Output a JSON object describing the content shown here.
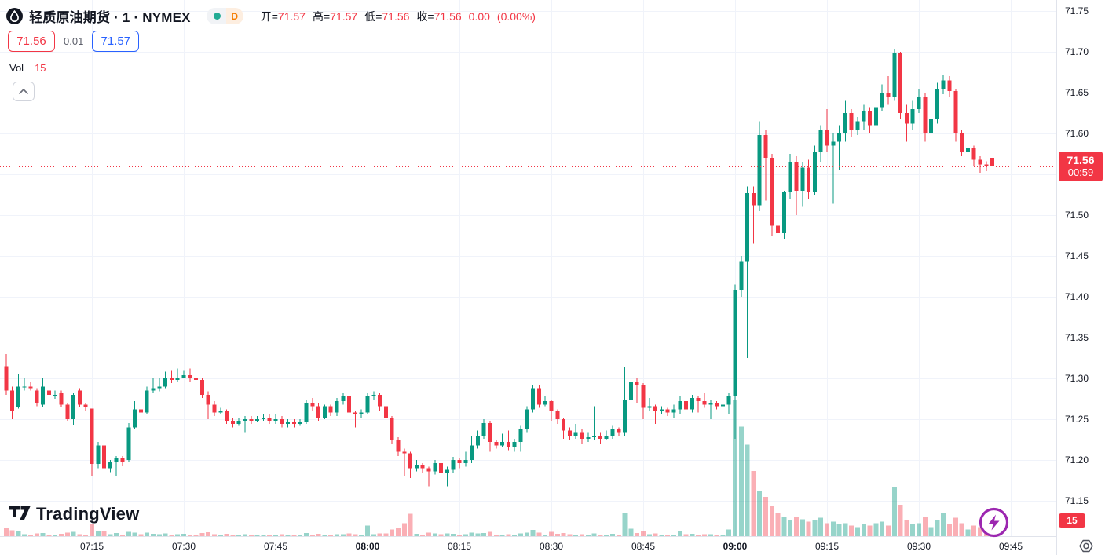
{
  "header": {
    "title": "轻质原油期货 · 1 · NYMEX",
    "interval_label": "D",
    "ohlc": [
      {
        "label": "开=",
        "value": "71.57"
      },
      {
        "label": "高=",
        "value": "71.57"
      },
      {
        "label": "低=",
        "value": "71.56"
      },
      {
        "label": "收=",
        "value": "71.56"
      }
    ],
    "change": "0.00",
    "change_pct": "(0.00%)"
  },
  "quote_row": {
    "sell": "71.56",
    "spread": "0.01",
    "buy": "71.57"
  },
  "volume_row": {
    "label": "Vol",
    "value": "15"
  },
  "watermark": {
    "brand": "TradingView"
  },
  "price_scale": {
    "current_badge": {
      "price": "71.56",
      "countdown": "00:59"
    },
    "volume_badge": "15"
  },
  "colors": {
    "up": "#089981",
    "down": "#f23645",
    "vol_up": "rgba(8,153,129,0.42)",
    "vol_down": "rgba(242,54,69,0.40)",
    "grid": "#f0f3fa",
    "axis_text": "#131722",
    "accent_red": "#f23645",
    "accent_blue": "#2962ff",
    "accent_orange": "#f57c00",
    "accent_purple": "#9c27b0",
    "muted": "#5d606b",
    "border": "#e0e3eb"
  },
  "chart_data": {
    "type": "candlestick+volume",
    "title": "轻质原油期货 1分钟 NYMEX",
    "start_time": "07:01",
    "interval_minutes": 1,
    "current_price": 71.56,
    "ylim": [
      71.1067,
      71.7635
    ],
    "grid": true,
    "price_ticks": [
      "71.75",
      "71.70",
      "71.65",
      "71.60",
      "71.55",
      "71.50",
      "71.45",
      "71.40",
      "71.35",
      "71.30",
      "71.25",
      "71.20",
      "71.15"
    ],
    "time_ticks": [
      {
        "label": "07:15",
        "bold": false
      },
      {
        "label": "07:30",
        "bold": false
      },
      {
        "label": "07:45",
        "bold": false
      },
      {
        "label": "08:00",
        "bold": true
      },
      {
        "label": "08:15",
        "bold": false
      },
      {
        "label": "08:30",
        "bold": false
      },
      {
        "label": "08:45",
        "bold": false
      },
      {
        "label": "09:00",
        "bold": true
      },
      {
        "label": "09:15",
        "bold": false
      },
      {
        "label": "09:30",
        "bold": false
      },
      {
        "label": "09:45",
        "bold": false
      }
    ],
    "volume_scale_max": 520,
    "candles": [
      [
        71.315,
        71.33,
        71.28,
        71.285
      ],
      [
        71.285,
        71.29,
        71.25,
        71.26
      ],
      [
        71.265,
        71.305,
        71.263,
        71.29
      ],
      [
        71.29,
        71.3,
        71.285,
        71.29
      ],
      [
        71.29,
        71.295,
        71.285,
        71.288
      ],
      [
        71.285,
        71.288,
        71.266,
        71.27
      ],
      [
        71.268,
        71.3,
        71.265,
        71.29
      ],
      [
        71.285,
        71.285,
        71.275,
        71.28
      ],
      [
        71.28,
        71.285,
        71.275,
        71.28
      ],
      [
        71.282,
        71.285,
        71.265,
        71.268
      ],
      [
        71.268,
        71.27,
        71.248,
        71.25
      ],
      [
        71.25,
        71.282,
        71.243,
        71.28
      ],
      [
        71.285,
        71.288,
        71.265,
        71.268
      ],
      [
        71.268,
        71.27,
        71.26,
        71.265
      ],
      [
        71.263,
        71.263,
        71.18,
        71.195
      ],
      [
        71.195,
        71.222,
        71.19,
        71.218
      ],
      [
        71.218,
        71.22,
        71.185,
        71.19
      ],
      [
        71.19,
        71.2,
        71.185,
        71.198
      ],
      [
        71.198,
        71.205,
        71.18,
        71.202
      ],
      [
        71.202,
        71.205,
        71.193,
        71.198
      ],
      [
        71.2,
        71.245,
        71.198,
        71.24
      ],
      [
        71.24,
        71.272,
        71.238,
        71.262
      ],
      [
        71.262,
        71.268,
        71.252,
        71.258
      ],
      [
        71.258,
        71.29,
        71.256,
        71.285
      ],
      [
        71.285,
        71.3,
        71.282,
        71.288
      ],
      [
        71.288,
        71.3,
        71.284,
        71.29
      ],
      [
        71.29,
        71.308,
        71.288,
        71.3
      ],
      [
        71.3,
        71.31,
        71.294,
        71.298
      ],
      [
        71.298,
        71.312,
        71.296,
        71.3
      ],
      [
        71.3,
        71.31,
        71.3,
        71.304
      ],
      [
        71.304,
        71.312,
        71.296,
        71.3
      ],
      [
        71.3,
        71.31,
        71.294,
        71.298
      ],
      [
        71.298,
        71.3,
        71.276,
        71.28
      ],
      [
        71.28,
        71.284,
        71.25,
        71.268
      ],
      [
        71.268,
        71.272,
        71.254,
        71.258
      ],
      [
        71.258,
        71.264,
        71.256,
        71.26
      ],
      [
        71.26,
        71.262,
        71.244,
        71.248
      ],
      [
        71.248,
        71.252,
        71.24,
        71.244
      ],
      [
        71.244,
        71.252,
        71.242,
        71.248
      ],
      [
        71.248,
        71.254,
        71.234,
        71.25
      ],
      [
        71.25,
        71.254,
        71.244,
        71.248
      ],
      [
        71.248,
        71.254,
        71.246,
        71.25
      ],
      [
        71.25,
        71.256,
        71.248,
        71.252
      ],
      [
        71.252,
        71.256,
        71.244,
        71.248
      ],
      [
        71.248,
        71.256,
        71.244,
        71.25
      ],
      [
        71.25,
        71.254,
        71.24,
        71.244
      ],
      [
        71.244,
        71.25,
        71.24,
        71.246
      ],
      [
        71.246,
        71.25,
        71.24,
        71.244
      ],
      [
        71.244,
        71.25,
        71.242,
        71.246
      ],
      [
        71.246,
        71.274,
        71.244,
        71.27
      ],
      [
        71.27,
        71.276,
        71.26,
        71.266
      ],
      [
        71.266,
        71.27,
        71.248,
        71.252
      ],
      [
        71.252,
        71.268,
        71.25,
        71.266
      ],
      [
        71.266,
        71.268,
        71.254,
        71.258
      ],
      [
        71.258,
        71.276,
        71.254,
        71.272
      ],
      [
        71.272,
        71.282,
        71.268,
        71.278
      ],
      [
        71.278,
        71.28,
        71.248,
        71.258
      ],
      [
        71.258,
        71.26,
        71.24,
        71.256
      ],
      [
        71.256,
        71.262,
        71.252,
        71.258
      ],
      [
        71.258,
        71.282,
        71.256,
        71.278
      ],
      [
        71.278,
        71.284,
        71.274,
        71.28
      ],
      [
        71.28,
        71.282,
        71.26,
        71.266
      ],
      [
        71.266,
        71.268,
        71.246,
        71.252
      ],
      [
        71.252,
        71.254,
        71.22,
        71.225
      ],
      [
        71.225,
        71.228,
        71.205,
        71.21
      ],
      [
        71.21,
        71.214,
        71.18,
        71.208
      ],
      [
        71.208,
        71.21,
        71.178,
        71.19
      ],
      [
        71.19,
        71.2,
        71.186,
        71.194
      ],
      [
        71.194,
        71.196,
        71.184,
        71.19
      ],
      [
        71.19,
        71.192,
        71.168,
        71.186
      ],
      [
        71.186,
        71.2,
        71.182,
        71.196
      ],
      [
        71.196,
        71.198,
        71.178,
        71.184
      ],
      [
        71.184,
        71.192,
        71.168,
        71.188
      ],
      [
        71.188,
        71.204,
        71.184,
        71.2
      ],
      [
        71.2,
        71.202,
        71.19,
        71.196
      ],
      [
        71.196,
        71.21,
        71.192,
        71.2
      ],
      [
        71.2,
        71.23,
        71.196,
        71.218
      ],
      [
        71.218,
        71.236,
        71.214,
        71.23
      ],
      [
        71.23,
        71.25,
        71.226,
        71.245
      ],
      [
        71.245,
        71.248,
        71.21,
        71.222
      ],
      [
        71.222,
        71.224,
        71.214,
        71.218
      ],
      [
        71.218,
        71.232,
        71.216,
        71.222
      ],
      [
        71.222,
        71.236,
        71.212,
        71.216
      ],
      [
        71.216,
        71.226,
        71.21,
        71.222
      ],
      [
        71.222,
        71.242,
        71.21,
        71.238
      ],
      [
        71.238,
        71.266,
        71.234,
        71.262
      ],
      [
        71.262,
        71.292,
        71.258,
        71.288
      ],
      [
        71.288,
        71.292,
        71.264,
        71.268
      ],
      [
        71.268,
        71.278,
        71.266,
        71.272
      ],
      [
        71.272,
        71.274,
        71.248,
        71.26
      ],
      [
        71.26,
        71.262,
        71.244,
        71.25
      ],
      [
        71.25,
        71.252,
        71.226,
        71.236
      ],
      [
        71.236,
        71.24,
        71.224,
        71.23
      ],
      [
        71.23,
        71.244,
        71.226,
        71.234
      ],
      [
        71.234,
        71.238,
        71.22,
        71.226
      ],
      [
        71.226,
        71.234,
        71.222,
        71.228
      ],
      [
        71.228,
        71.266,
        71.224,
        71.23
      ],
      [
        71.23,
        71.234,
        71.22,
        71.226
      ],
      [
        71.226,
        71.236,
        71.224,
        71.23
      ],
      [
        71.23,
        71.242,
        71.226,
        71.238
      ],
      [
        71.238,
        71.24,
        71.23,
        71.234
      ],
      [
        71.234,
        71.314,
        71.23,
        71.274
      ],
      [
        71.274,
        71.31,
        71.27,
        71.296
      ],
      [
        71.296,
        71.3,
        71.27,
        71.292
      ],
      [
        71.292,
        71.294,
        71.25,
        71.264
      ],
      [
        71.264,
        71.276,
        71.26,
        71.266
      ],
      [
        71.266,
        71.268,
        71.244,
        71.26
      ],
      [
        71.26,
        71.266,
        71.256,
        71.262
      ],
      [
        71.262,
        71.264,
        71.254,
        71.258
      ],
      [
        71.258,
        71.268,
        71.252,
        71.262
      ],
      [
        71.262,
        71.278,
        71.256,
        71.272
      ],
      [
        71.272,
        71.278,
        71.258,
        71.262
      ],
      [
        71.262,
        71.28,
        71.258,
        71.276
      ],
      [
        71.276,
        71.278,
        71.258,
        71.272
      ],
      [
        71.272,
        71.282,
        71.264,
        71.268
      ],
      [
        71.268,
        71.274,
        71.25,
        71.27
      ],
      [
        71.27,
        71.272,
        71.262,
        71.266
      ],
      [
        71.266,
        71.274,
        71.254,
        71.268
      ],
      [
        71.268,
        71.282,
        71.256,
        71.278
      ],
      [
        71.278,
        71.415,
        71.226,
        71.408
      ],
      [
        71.408,
        71.45,
        71.4,
        71.443
      ],
      [
        71.443,
        71.535,
        71.325,
        71.527
      ],
      [
        71.527,
        71.535,
        71.465,
        71.512
      ],
      [
        71.512,
        71.615,
        71.505,
        71.598
      ],
      [
        71.598,
        71.605,
        71.518,
        71.57
      ],
      [
        71.57,
        71.575,
        71.475,
        71.487
      ],
      [
        71.487,
        71.5,
        71.455,
        71.478
      ],
      [
        71.478,
        71.53,
        71.47,
        71.528
      ],
      [
        71.528,
        71.575,
        71.52,
        71.565
      ],
      [
        71.565,
        71.572,
        71.5,
        71.53
      ],
      [
        71.53,
        71.565,
        71.51,
        71.558
      ],
      [
        71.558,
        71.568,
        71.52,
        71.528
      ],
      [
        71.528,
        71.585,
        71.524,
        71.578
      ],
      [
        71.578,
        71.61,
        71.565,
        71.605
      ],
      [
        71.605,
        71.63,
        71.578,
        71.585
      ],
      [
        71.585,
        71.6,
        71.514,
        71.59
      ],
      [
        71.59,
        71.61,
        71.556,
        71.6
      ],
      [
        71.6,
        71.64,
        71.59,
        71.625
      ],
      [
        71.625,
        71.63,
        71.595,
        71.605
      ],
      [
        71.605,
        71.62,
        71.598,
        71.615
      ],
      [
        71.615,
        71.635,
        71.605,
        71.628
      ],
      [
        71.628,
        71.632,
        71.6,
        71.61
      ],
      [
        71.61,
        71.64,
        71.606,
        71.632
      ],
      [
        71.632,
        71.66,
        71.628,
        71.65
      ],
      [
        71.65,
        71.67,
        71.635,
        71.645
      ],
      [
        71.645,
        71.703,
        71.64,
        71.698
      ],
      [
        71.698,
        71.7,
        71.618,
        71.625
      ],
      [
        71.625,
        71.635,
        71.59,
        71.612
      ],
      [
        71.612,
        71.64,
        71.605,
        71.63
      ],
      [
        71.63,
        71.655,
        71.625,
        71.645
      ],
      [
        71.645,
        71.65,
        71.59,
        71.6
      ],
      [
        71.6,
        71.625,
        71.592,
        71.618
      ],
      [
        71.618,
        71.662,
        71.612,
        71.655
      ],
      [
        71.655,
        71.672,
        71.648,
        71.665
      ],
      [
        71.665,
        71.67,
        71.645,
        71.652
      ],
      [
        71.652,
        71.655,
        71.59,
        71.6
      ],
      [
        71.6,
        71.605,
        71.572,
        71.578
      ],
      [
        71.578,
        71.59,
        71.574,
        71.582
      ],
      [
        71.582,
        71.585,
        71.56,
        71.568
      ],
      [
        71.568,
        71.572,
        71.552,
        71.562
      ],
      [
        71.562,
        71.566,
        71.554,
        71.56
      ],
      [
        71.57,
        71.57,
        71.56,
        71.56
      ]
    ],
    "volumes": [
      30,
      22,
      18,
      8,
      6,
      10,
      12,
      5,
      4,
      9,
      14,
      16,
      8,
      5,
      48,
      20,
      18,
      8,
      12,
      6,
      16,
      14,
      7,
      13,
      9,
      7,
      11,
      6,
      7,
      9,
      6,
      5,
      12,
      15,
      8,
      4,
      9,
      6,
      4,
      8,
      3,
      4,
      5,
      4,
      6,
      7,
      3,
      4,
      3,
      12,
      5,
      9,
      6,
      4,
      8,
      7,
      10,
      7,
      4,
      40,
      8,
      10,
      11,
      25,
      30,
      50,
      85,
      9,
      6,
      14,
      10,
      8,
      11,
      9,
      5,
      7,
      13,
      10,
      12,
      16,
      5,
      6,
      8,
      5,
      11,
      14,
      24,
      13,
      6,
      17,
      9,
      12,
      7,
      6,
      8,
      4,
      10,
      5,
      4,
      9,
      5,
      90,
      28,
      12,
      18,
      8,
      10,
      5,
      4,
      6,
      20,
      8,
      9,
      6,
      7,
      8,
      5,
      6,
      25,
      520,
      420,
      350,
      250,
      175,
      150,
      115,
      90,
      75,
      60,
      75,
      65,
      55,
      60,
      70,
      50,
      55,
      45,
      50,
      40,
      35,
      45,
      40,
      50,
      55,
      40,
      190,
      120,
      60,
      45,
      50,
      75,
      35,
      60,
      90,
      45,
      70,
      50,
      25,
      40,
      35,
      20,
      15
    ]
  }
}
